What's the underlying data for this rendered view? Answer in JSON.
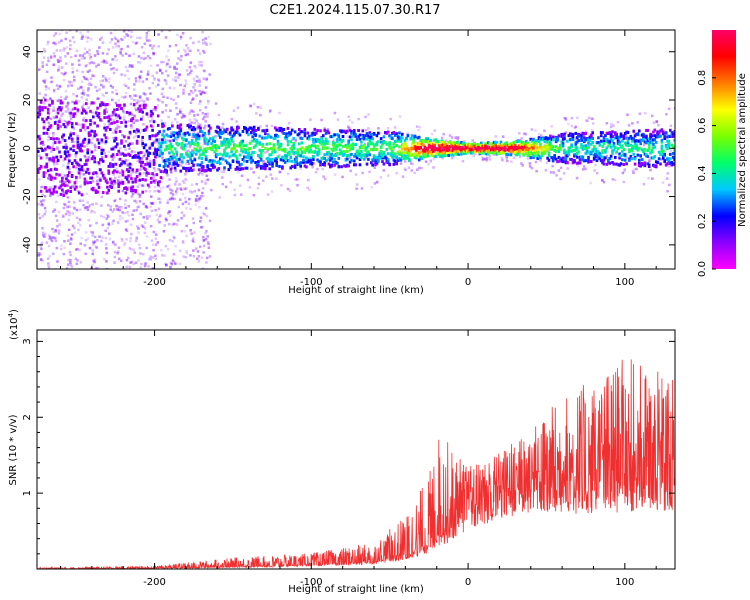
{
  "title": "C2E1.2024.115.07.30.R17",
  "chart_data": [
    {
      "type": "heatmap",
      "xlabel": "Height of straight line (km)",
      "ylabel": "Frequency (Hz)",
      "xlim": [
        -275,
        132
      ],
      "ylim": [
        -50,
        49
      ],
      "x_ticks": [
        -200,
        -100,
        0,
        100
      ],
      "y_ticks": [
        -40,
        -20,
        0,
        20,
        40
      ],
      "colorbar": {
        "label": "Normalized spectral amplitude",
        "range": [
          0,
          1
        ],
        "ticks": [
          0.0,
          0.2,
          0.4,
          0.6,
          0.8
        ],
        "colors": [
          "#ff00ff",
          "#8a00ff",
          "#0000ff",
          "#00c8ff",
          "#00ff6a",
          "#7aff00",
          "#ffff00",
          "#ff7a00",
          "#ff0000",
          "#ff0066"
        ]
      },
      "band_profile": [
        {
          "x": -270,
          "width_hz": 20,
          "amplitude": 0.1
        },
        {
          "x": -200,
          "width_hz": 18,
          "amplitude": 0.15
        },
        {
          "x": -195,
          "width_hz": 10,
          "amplitude": 0.35
        },
        {
          "x": -150,
          "width_hz": 9,
          "amplitude": 0.4
        },
        {
          "x": -100,
          "width_hz": 8,
          "amplitude": 0.4
        },
        {
          "x": -50,
          "width_hz": 7,
          "amplitude": 0.4
        },
        {
          "x": -25,
          "width_hz": 4,
          "amplitude": 0.9
        },
        {
          "x": 0,
          "width_hz": 2,
          "amplitude": 0.95
        },
        {
          "x": 30,
          "width_hz": 3,
          "amplitude": 0.85
        },
        {
          "x": 60,
          "width_hz": 6,
          "amplitude": 0.35
        },
        {
          "x": 130,
          "width_hz": 8,
          "amplitude": 0.35
        }
      ]
    },
    {
      "type": "line",
      "xlabel": "Height of straight line (km)",
      "ylabel": "SNR (10 * v/v)",
      "y_multiplier": "(x10",
      "y_multiplier_exp": "4",
      "y_multiplier_close": ")",
      "xlim": [
        -275,
        132
      ],
      "ylim": [
        0,
        3.15
      ],
      "x_ticks": [
        -200,
        -100,
        0,
        100
      ],
      "y_ticks": [
        1,
        2,
        3
      ],
      "color": "#f03030",
      "envelope": [
        {
          "x": -275,
          "base": 0.0,
          "amp": 0.02
        },
        {
          "x": -200,
          "base": 0.01,
          "amp": 0.03
        },
        {
          "x": -150,
          "base": 0.03,
          "amp": 0.12
        },
        {
          "x": -100,
          "base": 0.06,
          "amp": 0.15
        },
        {
          "x": -60,
          "base": 0.1,
          "amp": 0.25
        },
        {
          "x": -40,
          "base": 0.2,
          "amp": 0.5
        },
        {
          "x": -25,
          "base": 0.35,
          "amp": 0.9
        },
        {
          "x": -18,
          "base": 0.5,
          "amp": 1.35
        },
        {
          "x": -10,
          "base": 0.6,
          "amp": 1.0
        },
        {
          "x": 0,
          "base": 0.85,
          "amp": 0.5
        },
        {
          "x": 20,
          "base": 1.1,
          "amp": 0.45
        },
        {
          "x": 40,
          "base": 1.25,
          "amp": 0.6
        },
        {
          "x": 60,
          "base": 1.2,
          "amp": 1.1
        },
        {
          "x": 80,
          "base": 1.2,
          "amp": 1.3
        },
        {
          "x": 100,
          "base": 1.2,
          "amp": 1.6
        },
        {
          "x": 132,
          "base": 1.3,
          "amp": 1.2
        }
      ]
    }
  ]
}
